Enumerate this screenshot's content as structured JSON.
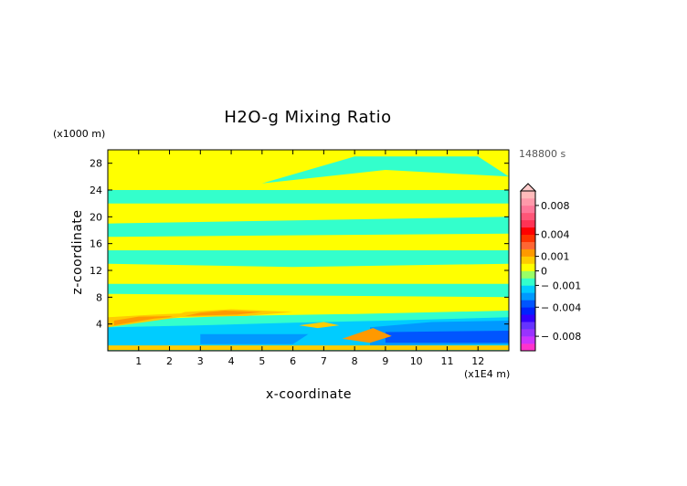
{
  "chart_data": {
    "type": "heatmap",
    "title": "H2O-g Mixing Ratio",
    "xlabel": "x-coordinate",
    "ylabel": "z-coordinate",
    "x_unit": "(x1E4 m)",
    "y_unit": "(x1000 m)",
    "time_label": "148800 s",
    "xlim": [
      0,
      13
    ],
    "ylim": [
      0,
      30
    ],
    "x_ticks": [
      1,
      2,
      3,
      4,
      5,
      6,
      7,
      8,
      9,
      10,
      11,
      12
    ],
    "y_ticks": [
      4,
      8,
      12,
      16,
      20,
      24,
      28
    ],
    "colorbar": {
      "levels": [
        -0.01,
        -0.009,
        -0.008,
        -0.007,
        -0.006,
        -0.005,
        -0.004,
        -0.003,
        -0.002,
        -0.001,
        -0.0005,
        0,
        0.0005,
        0.001,
        0.002,
        0.003,
        0.004,
        0.005,
        0.006,
        0.007,
        0.008,
        0.009,
        0.01
      ],
      "colors": [
        "#ff33cc",
        "#cc33ff",
        "#9933ff",
        "#6633ff",
        "#3300ff",
        "#0022ff",
        "#0055ff",
        "#0099ff",
        "#00ccff",
        "#33ffcc",
        "#99ff66",
        "#ffff00",
        "#ffcc00",
        "#ff9900",
        "#ff6633",
        "#ff3300",
        "#ff0000",
        "#ff3355",
        "#ff5577",
        "#ff7799",
        "#ff99aa",
        "#ffbbbb"
      ],
      "tick_values": [
        0.008,
        0.004,
        0.001,
        0,
        -0.001,
        -0.004,
        -0.008
      ],
      "tick_labels": [
        "0.008",
        "0.004",
        "0.001",
        "0",
        "− 0.001",
        "− 0.004",
        "− 0.008"
      ]
    },
    "background_value": 0,
    "regions": [
      {
        "value": -0.0006,
        "points": [
          [
            0,
            22
          ],
          [
            13,
            22
          ],
          [
            13,
            24
          ],
          [
            0,
            24
          ]
        ]
      },
      {
        "value": -0.0006,
        "points": [
          [
            0,
            17
          ],
          [
            13,
            17.5
          ],
          [
            13,
            20
          ],
          [
            0,
            19
          ]
        ]
      },
      {
        "value": -0.0006,
        "points": [
          [
            0,
            13
          ],
          [
            6,
            12.5
          ],
          [
            13,
            13
          ],
          [
            13,
            15
          ],
          [
            0,
            15
          ]
        ]
      },
      {
        "value": -0.0006,
        "points": [
          [
            0,
            8.5
          ],
          [
            13,
            8
          ],
          [
            13,
            10
          ],
          [
            0,
            10
          ]
        ]
      },
      {
        "value": -0.0006,
        "points": [
          [
            5,
            25
          ],
          [
            8,
            29
          ],
          [
            12,
            29
          ],
          [
            13,
            26
          ],
          [
            9,
            27
          ]
        ]
      },
      {
        "value": -0.0006,
        "points": [
          [
            0,
            0
          ],
          [
            13,
            0
          ],
          [
            13,
            6
          ],
          [
            8,
            5.5
          ],
          [
            4,
            5.2
          ],
          [
            0,
            4.5
          ]
        ]
      },
      {
        "value": -0.0012,
        "points": [
          [
            0,
            0
          ],
          [
            13,
            0
          ],
          [
            13,
            5
          ],
          [
            9,
            4.5
          ],
          [
            6,
            4.2
          ],
          [
            3,
            3.8
          ],
          [
            0,
            3.5
          ]
        ]
      },
      {
        "value": -0.0025,
        "points": [
          [
            8.5,
            0.8
          ],
          [
            13,
            1
          ],
          [
            13,
            4.5
          ],
          [
            10.5,
            4.3
          ],
          [
            8.5,
            3.5
          ]
        ]
      },
      {
        "value": -0.0025,
        "points": [
          [
            3,
            1
          ],
          [
            6,
            1
          ],
          [
            6.5,
            2.5
          ],
          [
            3,
            2.5
          ]
        ]
      },
      {
        "value": -0.0035,
        "points": [
          [
            9,
            1.2
          ],
          [
            13,
            1.2
          ],
          [
            13,
            3
          ],
          [
            9,
            2.8
          ]
        ]
      },
      {
        "value": 0.0008,
        "points": [
          [
            0,
            3.5
          ],
          [
            2,
            4.8
          ],
          [
            3.5,
            5.8
          ],
          [
            1.5,
            5.4
          ],
          [
            0,
            5
          ]
        ]
      },
      {
        "value": 0.0015,
        "points": [
          [
            0.2,
            3.8
          ],
          [
            1.5,
            4.8
          ],
          [
            2.5,
            5.2
          ],
          [
            1,
            5.1
          ],
          [
            0.2,
            4.5
          ]
        ]
      },
      {
        "value": 0.0008,
        "points": [
          [
            2,
            5
          ],
          [
            4.5,
            5.2
          ],
          [
            6,
            5.8
          ],
          [
            4,
            6.2
          ],
          [
            2.5,
            5.8
          ]
        ]
      },
      {
        "value": 0.0015,
        "points": [
          [
            2.5,
            5.2
          ],
          [
            4.2,
            5.4
          ],
          [
            5,
            5.8
          ],
          [
            3.8,
            6.0
          ],
          [
            3,
            5.7
          ]
        ]
      },
      {
        "value": 0.0008,
        "points": [
          [
            0,
            0.1
          ],
          [
            13,
            0.1
          ],
          [
            13,
            0.8
          ],
          [
            0,
            0.8
          ]
        ]
      },
      {
        "value": 0.0015,
        "points": [
          [
            7.6,
            1.8
          ],
          [
            8.6,
            3.4
          ],
          [
            9.2,
            2.2
          ],
          [
            8.5,
            1.2
          ]
        ]
      },
      {
        "value": 0.0008,
        "points": [
          [
            6.2,
            3.8
          ],
          [
            7,
            4.3
          ],
          [
            7.5,
            3.8
          ],
          [
            6.8,
            3.4
          ]
        ]
      }
    ]
  }
}
